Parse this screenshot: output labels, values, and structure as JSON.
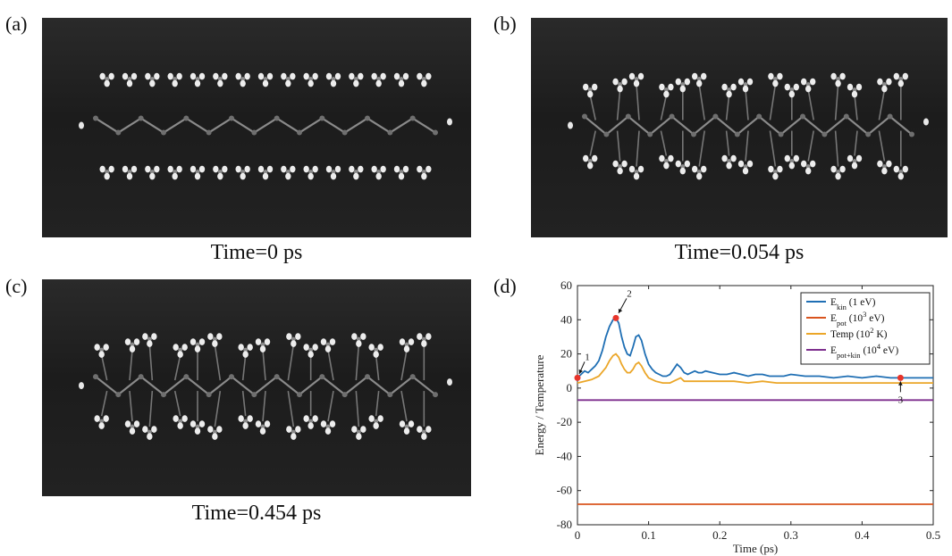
{
  "panels": {
    "a": {
      "letter": "(a)",
      "caption": "Time=0 ps"
    },
    "b": {
      "letter": "(b)",
      "caption": "Time=0.054 ps"
    },
    "c": {
      "letter": "(c)",
      "caption": "Time=0.454 ps"
    },
    "d": {
      "letter": "(d)"
    }
  },
  "chart_data": {
    "type": "line",
    "xlabel": "Time (ps)",
    "ylabel": "Energy / Temperature",
    "xlim": [
      0,
      0.5
    ],
    "ylim": [
      -80,
      60
    ],
    "xticks": [
      0,
      0.1,
      0.2,
      0.3,
      0.4,
      0.5
    ],
    "yticks": [
      -80,
      -60,
      -40,
      -20,
      0,
      20,
      40,
      60
    ],
    "legend_position": "top-right",
    "grid": false,
    "series": [
      {
        "name": "E_kin (1 eV)",
        "legend": {
          "base": "E",
          "sub": "kin",
          "rest": " (1 eV)",
          "sup": ""
        },
        "color": "#1f6fb4",
        "x": [
          0,
          0.005,
          0.01,
          0.015,
          0.02,
          0.025,
          0.03,
          0.035,
          0.04,
          0.045,
          0.05,
          0.054,
          0.058,
          0.062,
          0.066,
          0.07,
          0.074,
          0.078,
          0.082,
          0.086,
          0.09,
          0.095,
          0.1,
          0.105,
          0.11,
          0.115,
          0.12,
          0.125,
          0.13,
          0.135,
          0.14,
          0.145,
          0.15,
          0.155,
          0.16,
          0.165,
          0.17,
          0.175,
          0.18,
          0.19,
          0.2,
          0.21,
          0.22,
          0.23,
          0.24,
          0.25,
          0.26,
          0.27,
          0.28,
          0.29,
          0.3,
          0.32,
          0.34,
          0.36,
          0.38,
          0.4,
          0.42,
          0.44,
          0.454,
          0.46,
          0.48,
          0.5
        ],
        "y": [
          6,
          8,
          10,
          9,
          11,
          13,
          16,
          22,
          30,
          36,
          40,
          41,
          38,
          30,
          24,
          20,
          19,
          24,
          30,
          31,
          28,
          20,
          14,
          11,
          9,
          8,
          7,
          7,
          8,
          11,
          14,
          12,
          9,
          8,
          9,
          10,
          9,
          9,
          10,
          9,
          8,
          8,
          9,
          8,
          7,
          8,
          8,
          7,
          7,
          7,
          8,
          7,
          7,
          6,
          7,
          6,
          7,
          6,
          6,
          6,
          6,
          6
        ]
      },
      {
        "name": "E_pot (10^3 eV)",
        "legend": {
          "base": "E",
          "sub": "pot",
          "rest": " (10",
          "sup": "3",
          "tail": " eV)"
        },
        "color": "#d9541e",
        "x": [
          0,
          0.5
        ],
        "y": [
          -68,
          -68
        ]
      },
      {
        "name": "Temp (10^2 K)",
        "legend": {
          "base": "Temp (10",
          "sub": "",
          "sup": "2",
          "tail": " K)"
        },
        "color": "#eba628",
        "x": [
          0,
          0.01,
          0.02,
          0.03,
          0.04,
          0.045,
          0.05,
          0.054,
          0.058,
          0.062,
          0.066,
          0.07,
          0.074,
          0.078,
          0.082,
          0.086,
          0.09,
          0.095,
          0.1,
          0.11,
          0.12,
          0.13,
          0.14,
          0.145,
          0.15,
          0.16,
          0.18,
          0.2,
          0.22,
          0.24,
          0.26,
          0.28,
          0.3,
          0.34,
          0.38,
          0.42,
          0.46,
          0.5
        ],
        "y": [
          3,
          4,
          5,
          7,
          12,
          16,
          19,
          20,
          18,
          14,
          11,
          9,
          9,
          11,
          14,
          15,
          13,
          9,
          6,
          4,
          3,
          3,
          5,
          6,
          4,
          4,
          4,
          4,
          4,
          3,
          4,
          3,
          3,
          3,
          3,
          3,
          3,
          3
        ]
      },
      {
        "name": "E_pot+kin (10^4 eV)",
        "legend": {
          "base": "E",
          "sub": "pot+kin",
          "rest": " (10",
          "sup": "4",
          "tail": " eV)"
        },
        "color": "#7e2f8e",
        "x": [
          0,
          0.5
        ],
        "y": [
          -7,
          -7
        ]
      }
    ],
    "markers": [
      {
        "label": "1",
        "x": 0,
        "y": 6
      },
      {
        "label": "2",
        "x": 0.054,
        "y": 41
      },
      {
        "label": "3",
        "x": 0.454,
        "y": 6
      }
    ]
  }
}
